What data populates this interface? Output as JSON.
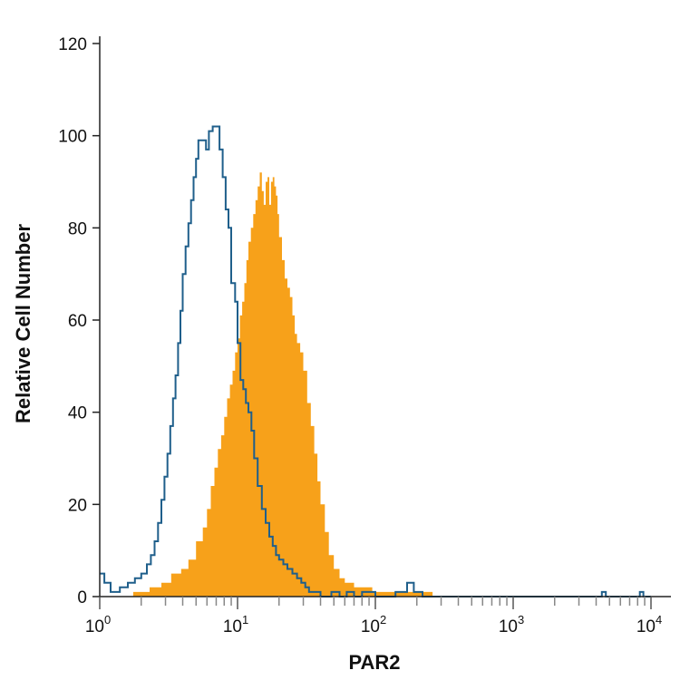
{
  "chart_data": {
    "type": "area",
    "title": "",
    "xlabel": "PAR2",
    "ylabel": "Relative Cell Number",
    "x_scale": "log",
    "xlim": [
      1,
      10000
    ],
    "ylim": [
      0,
      120
    ],
    "y_ticks": [
      "0",
      "20",
      "40",
      "60",
      "80",
      "100",
      "120"
    ],
    "x_ticks": [
      {
        "base": "10",
        "exp": "0"
      },
      {
        "base": "10",
        "exp": "1"
      },
      {
        "base": "10",
        "exp": "2"
      },
      {
        "base": "10",
        "exp": "3"
      },
      {
        "base": "10",
        "exp": "4"
      }
    ],
    "grid": false,
    "legend": "none",
    "series": [
      {
        "style": "step-outline",
        "color": "#1f5f8b",
        "points": [
          [
            1.0,
            5
          ],
          [
            1.08,
            3
          ],
          [
            1.2,
            1
          ],
          [
            1.4,
            2
          ],
          [
            1.6,
            3
          ],
          [
            1.8,
            4
          ],
          [
            2.0,
            5
          ],
          [
            2.2,
            7
          ],
          [
            2.35,
            9
          ],
          [
            2.5,
            12
          ],
          [
            2.65,
            16
          ],
          [
            2.8,
            21
          ],
          [
            2.95,
            26
          ],
          [
            3.1,
            31
          ],
          [
            3.25,
            37
          ],
          [
            3.4,
            43
          ],
          [
            3.55,
            48
          ],
          [
            3.7,
            55
          ],
          [
            3.85,
            62
          ],
          [
            4.0,
            70
          ],
          [
            4.2,
            76
          ],
          [
            4.4,
            81
          ],
          [
            4.6,
            86
          ],
          [
            4.8,
            91
          ],
          [
            5.0,
            95
          ],
          [
            5.2,
            99
          ],
          [
            5.6,
            99
          ],
          [
            5.9,
            97
          ],
          [
            6.2,
            101
          ],
          [
            6.6,
            102
          ],
          [
            7.0,
            102
          ],
          [
            7.4,
            97
          ],
          [
            7.8,
            91
          ],
          [
            8.2,
            84
          ],
          [
            8.6,
            80
          ],
          [
            9.0,
            68
          ],
          [
            9.6,
            64
          ],
          [
            10.0,
            55
          ],
          [
            10.5,
            47
          ],
          [
            11.0,
            45
          ],
          [
            11.5,
            42
          ],
          [
            12.0,
            40
          ],
          [
            12.6,
            36
          ],
          [
            13.2,
            30
          ],
          [
            14.0,
            24
          ],
          [
            15.0,
            19
          ],
          [
            16.0,
            16
          ],
          [
            17.0,
            13
          ],
          [
            18.0,
            11
          ],
          [
            19.0,
            9
          ],
          [
            20.0,
            8
          ],
          [
            21.5,
            7
          ],
          [
            23.0,
            6
          ],
          [
            25.0,
            5
          ],
          [
            27.0,
            4
          ],
          [
            29.0,
            3
          ],
          [
            31.0,
            2
          ],
          [
            33.0,
            1
          ],
          [
            36.0,
            1
          ],
          [
            40.0,
            0
          ],
          [
            48.0,
            1
          ],
          [
            55.0,
            0
          ],
          [
            62.0,
            1
          ],
          [
            70.0,
            0
          ],
          [
            80.0,
            1
          ],
          [
            100.0,
            0
          ],
          [
            140.0,
            1
          ],
          [
            170.0,
            3
          ],
          [
            190.0,
            1
          ],
          [
            220.0,
            0
          ],
          [
            4200.0,
            0
          ],
          [
            4400.0,
            1
          ],
          [
            4700.0,
            0
          ],
          [
            8000.0,
            0
          ],
          [
            8300.0,
            1
          ],
          [
            8800.0,
            0
          ],
          [
            10000.0,
            0
          ]
        ]
      },
      {
        "style": "filled",
        "color": "#f7a11a",
        "points": [
          [
            1.75,
            1
          ],
          [
            2.3,
            2
          ],
          [
            2.8,
            3
          ],
          [
            3.3,
            5
          ],
          [
            3.9,
            6
          ],
          [
            4.4,
            8
          ],
          [
            5.0,
            12
          ],
          [
            5.6,
            15
          ],
          [
            6.0,
            19
          ],
          [
            6.4,
            24
          ],
          [
            6.8,
            28
          ],
          [
            7.2,
            32
          ],
          [
            7.6,
            35
          ],
          [
            8.0,
            39
          ],
          [
            8.4,
            43
          ],
          [
            8.8,
            46
          ],
          [
            9.2,
            49
          ],
          [
            9.6,
            53
          ],
          [
            10.0,
            56
          ],
          [
            10.4,
            61
          ],
          [
            10.8,
            64
          ],
          [
            11.2,
            68
          ],
          [
            11.6,
            73
          ],
          [
            12.0,
            77
          ],
          [
            12.5,
            80
          ],
          [
            13.0,
            83
          ],
          [
            13.5,
            86
          ],
          [
            14.0,
            89
          ],
          [
            14.5,
            92
          ],
          [
            15.0,
            88
          ],
          [
            15.5,
            85
          ],
          [
            16.0,
            90
          ],
          [
            16.5,
            91
          ],
          [
            17.0,
            85
          ],
          [
            17.5,
            90
          ],
          [
            18.0,
            91
          ],
          [
            18.5,
            89
          ],
          [
            19.0,
            87
          ],
          [
            19.5,
            83
          ],
          [
            20.0,
            78
          ],
          [
            21.0,
            73
          ],
          [
            22.0,
            69
          ],
          [
            23.0,
            67
          ],
          [
            24.0,
            65
          ],
          [
            25.0,
            61
          ],
          [
            26.0,
            57
          ],
          [
            27.0,
            55
          ],
          [
            28.5,
            53
          ],
          [
            30.0,
            49
          ],
          [
            32.0,
            42
          ],
          [
            34.0,
            37
          ],
          [
            36.0,
            31
          ],
          [
            38.0,
            25
          ],
          [
            40.0,
            20
          ],
          [
            43.0,
            14
          ],
          [
            46.0,
            9
          ],
          [
            50.0,
            6
          ],
          [
            55.0,
            4
          ],
          [
            60.0,
            3
          ],
          [
            70.0,
            2
          ],
          [
            80.0,
            2
          ],
          [
            95.0,
            1
          ],
          [
            120.0,
            1
          ],
          [
            160.0,
            1
          ],
          [
            200.0,
            1
          ],
          [
            260.0,
            0
          ]
        ]
      }
    ]
  }
}
